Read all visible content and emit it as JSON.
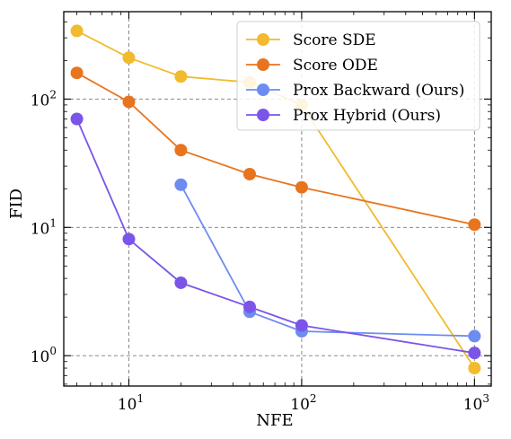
{
  "chart_data": {
    "type": "line",
    "xscale": "log",
    "yscale": "log",
    "xlabel": "NFE",
    "ylabel": "FID",
    "xlim": [
      4.2,
      1250
    ],
    "ylim": [
      0.58,
      480
    ],
    "grid": true,
    "legend_position": "top-right",
    "x_ticks": [
      10,
      100,
      1000
    ],
    "x_tick_labels": [
      {
        "base": "10",
        "exp": "1"
      },
      {
        "base": "10",
        "exp": "2"
      },
      {
        "base": "10",
        "exp": "3"
      }
    ],
    "y_ticks": [
      1,
      10,
      100
    ],
    "y_tick_labels": [
      {
        "base": "10",
        "exp": "0"
      },
      {
        "base": "10",
        "exp": "1"
      },
      {
        "base": "10",
        "exp": "2"
      }
    ],
    "series": [
      {
        "name": "Score SDE",
        "color": "#F2BA2D",
        "x": [
          5,
          10,
          20,
          50,
          100,
          1000
        ],
        "y": [
          340,
          210,
          150,
          135,
          90,
          0.8
        ]
      },
      {
        "name": "Score ODE",
        "color": "#E8741E",
        "x": [
          5,
          10,
          20,
          50,
          100,
          1000
        ],
        "y": [
          160,
          95,
          40,
          26,
          20.5,
          10.5
        ]
      },
      {
        "name": "Prox Backward (Ours)",
        "color": "#6D8CF2",
        "x": [
          20,
          50,
          100,
          1000
        ],
        "y": [
          21.5,
          2.2,
          1.55,
          1.42
        ]
      },
      {
        "name": "Prox Hybrid (Ours)",
        "color": "#7B55E8",
        "x": [
          5,
          10,
          20,
          50,
          100,
          1000
        ],
        "y": [
          70,
          8.1,
          3.7,
          2.4,
          1.72,
          1.05
        ]
      }
    ]
  }
}
